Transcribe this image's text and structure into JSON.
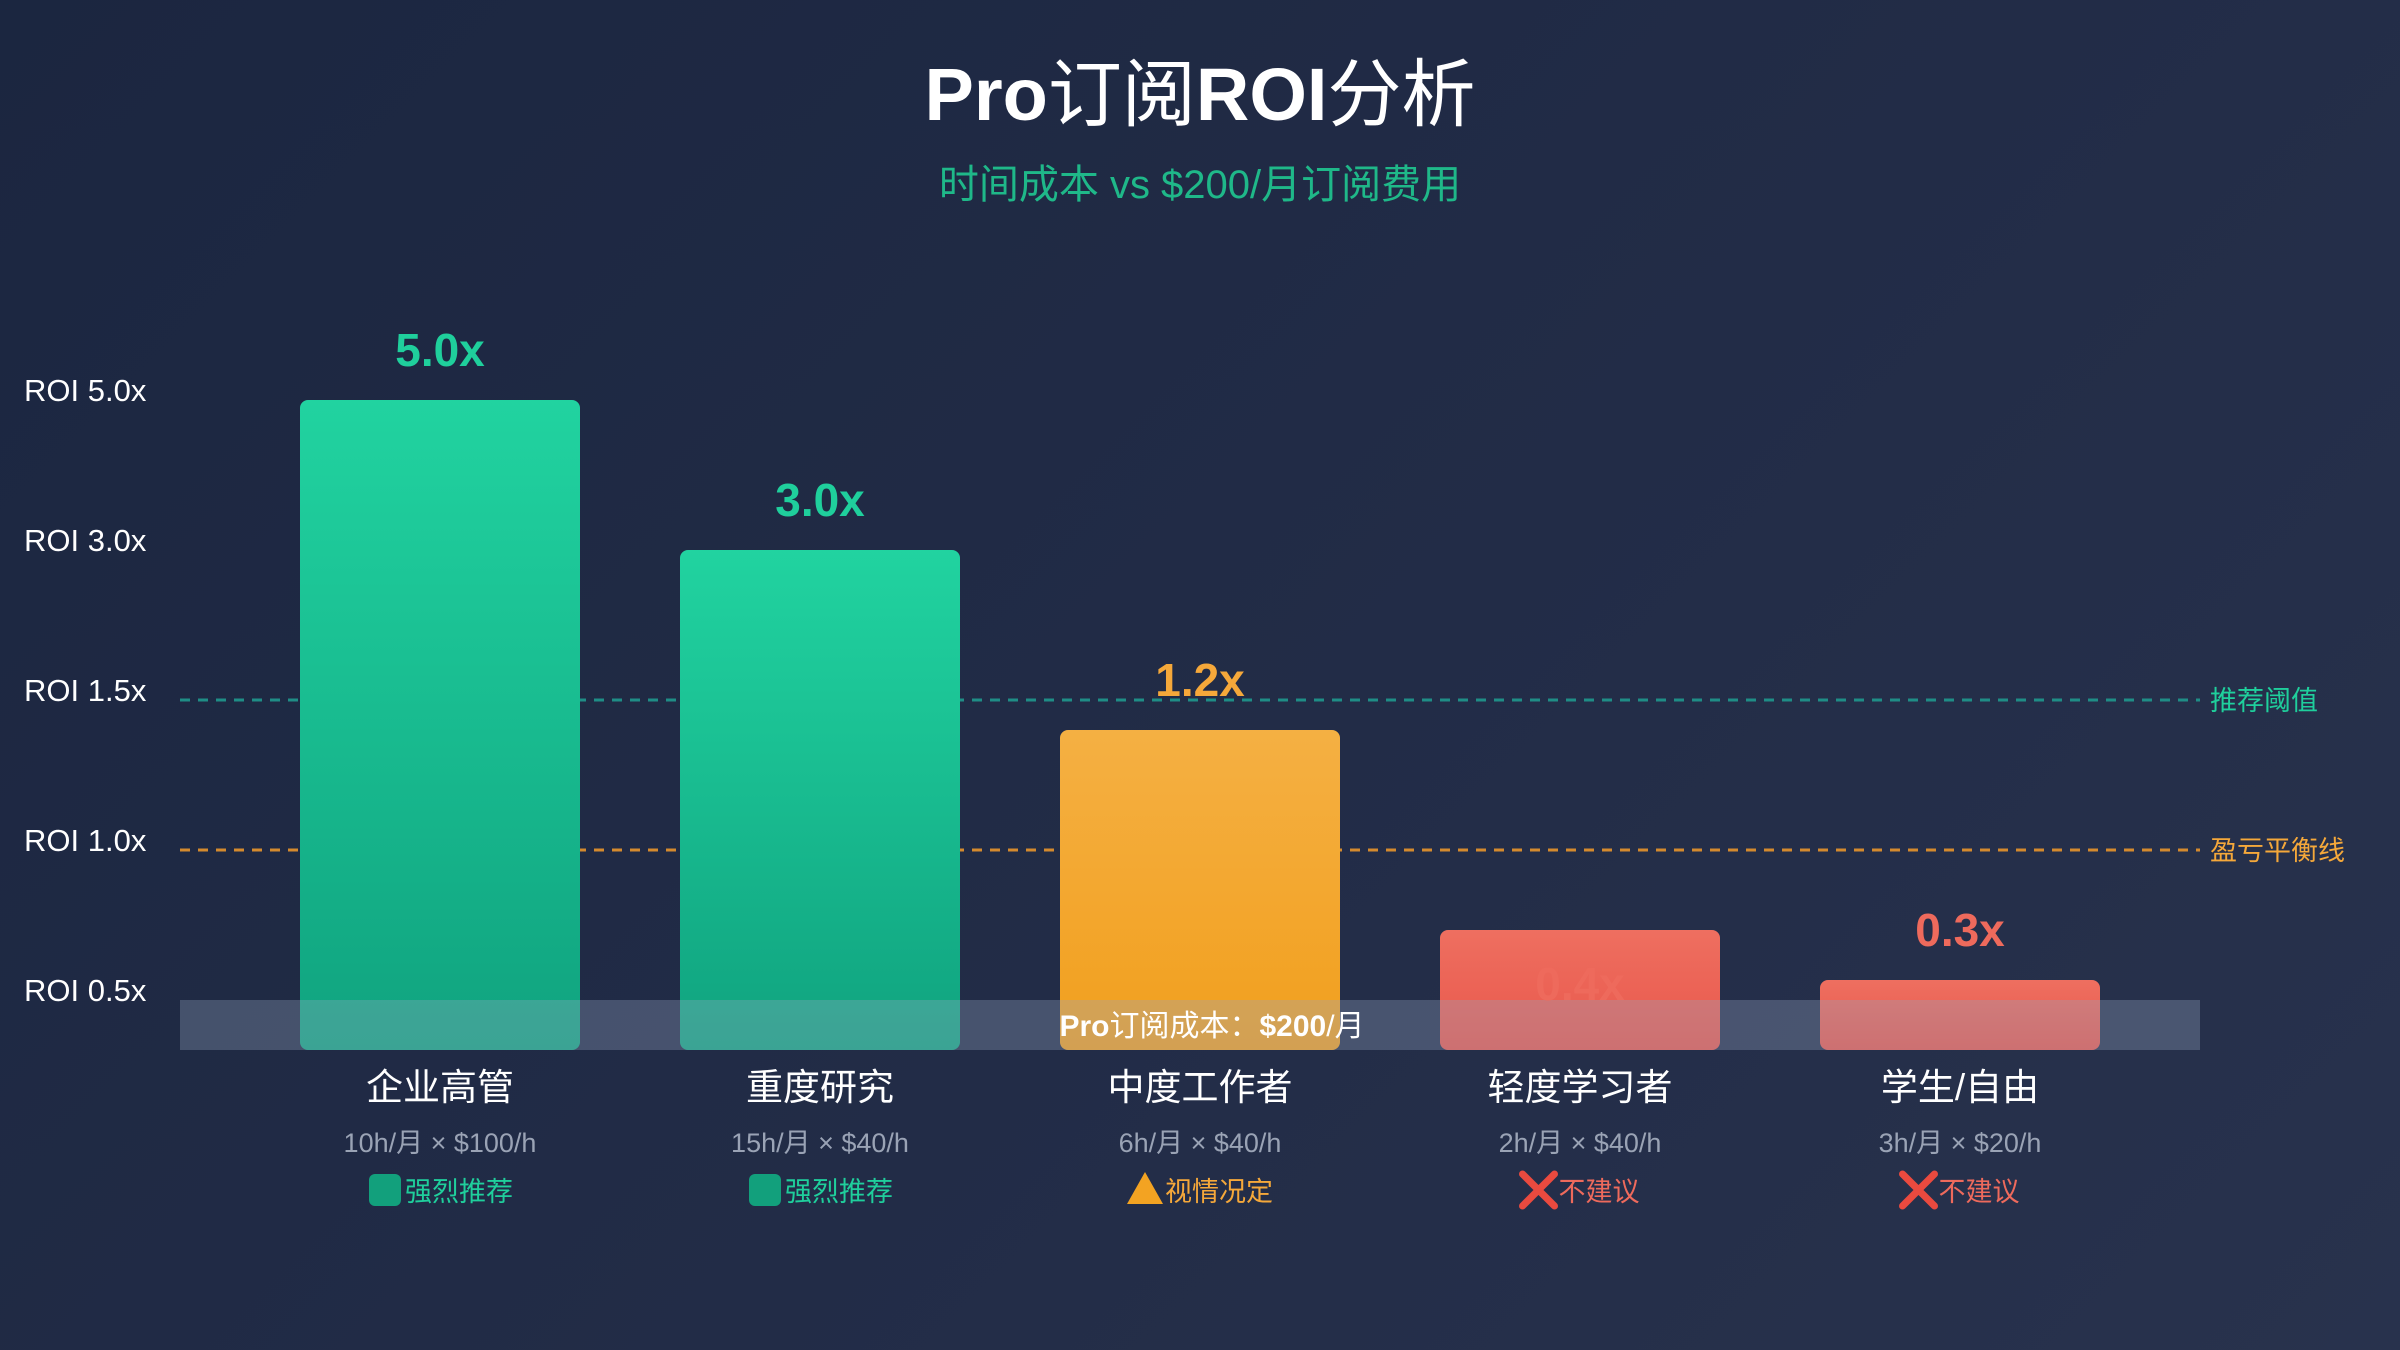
{
  "header": {
    "title_prefix": "Pro",
    "title_mid": "订阅",
    "title_roi": "ROI",
    "title_suffix": "分析",
    "subtitle": "时间成本 vs $200/月订阅费用"
  },
  "colors": {
    "green_top": "#21d3a0",
    "green_bottom": "#10a37f",
    "orange_top": "#f4b043",
    "orange_bottom": "#f29f1d",
    "red_top": "#ee6f60",
    "red_bottom": "#e9574b",
    "green_text": "#1fcf9c",
    "orange_text": "#f5a83a",
    "red_text": "#ee6a5c",
    "threshold_line": "#1f8d86",
    "breakeven_line": "#d48a2e",
    "badge_green": "#12a07c",
    "badge_orange": "#f3a322",
    "badge_red": "#ea4a3f"
  },
  "chart_data": {
    "type": "bar",
    "title": "Pro订阅ROI分析",
    "subtitle": "时间成本 vs $200/月订阅费用",
    "categories": [
      "企业高管",
      "重度研究",
      "中度工作者",
      "轻度学习者",
      "学生/自由"
    ],
    "values": [
      5.0,
      3.0,
      1.2,
      0.4,
      0.3
    ],
    "value_labels": [
      "5.0x",
      "3.0x",
      "1.2x",
      "0.4x",
      "0.3x"
    ],
    "bar_colors": [
      "green",
      "green",
      "orange",
      "red",
      "red"
    ],
    "formulas": [
      "10h/月 × $100/h",
      "15h/月 × $40/h",
      "6h/月 × $40/h",
      "2h/月 × $40/h",
      "3h/月 × $20/h"
    ],
    "recommendations": [
      {
        "icon": "green-square-icon",
        "text": "强烈推荐",
        "tone": "green"
      },
      {
        "icon": "green-square-icon",
        "text": "强烈推荐",
        "tone": "green"
      },
      {
        "icon": "warning-triangle-icon",
        "text": "视情况定",
        "tone": "orange"
      },
      {
        "icon": "red-cross-icon",
        "text": "不建议",
        "tone": "red"
      },
      {
        "icon": "red-cross-icon",
        "text": "不建议",
        "tone": "red"
      }
    ],
    "y_ticks": [
      {
        "value": 5.0,
        "label": "ROI 5.0x"
      },
      {
        "value": 3.0,
        "label": "ROI 3.0x"
      },
      {
        "value": 1.5,
        "label": "ROI 1.5x"
      },
      {
        "value": 1.0,
        "label": "ROI 1.0x"
      },
      {
        "value": 0.5,
        "label": "ROI 0.5x"
      }
    ],
    "reference_lines": [
      {
        "value": 1.5,
        "label": "推荐阈值",
        "tone": "threshold"
      },
      {
        "value": 1.0,
        "label": "盈亏平衡线",
        "tone": "breakeven"
      }
    ],
    "cost_band": {
      "prefix": "Pro",
      "mid": "订阅成本：",
      "amount": "$200",
      "suffix": "/月"
    },
    "grid": false,
    "legend": "none"
  }
}
